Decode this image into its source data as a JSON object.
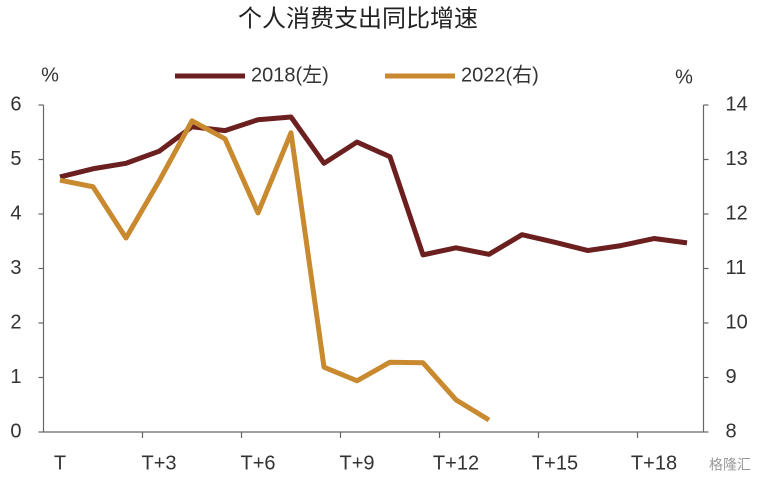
{
  "chart_data": {
    "type": "line",
    "title": "个人消费支出同比增速",
    "y_label": "%",
    "y2_label": "%",
    "categories": [
      "T",
      null,
      null,
      "T+3",
      null,
      null,
      "T+6",
      null,
      null,
      "T+9",
      null,
      null,
      "T+12",
      null,
      null,
      "T+15",
      null,
      null,
      "T+18",
      null
    ],
    "series": [
      {
        "name": "2018(左)",
        "color": "#6b1f1f",
        "values": [
          4.68,
          4.83,
          4.93,
          5.15,
          5.6,
          5.53,
          5.73,
          5.78,
          4.93,
          5.32,
          5.05,
          3.25,
          3.38,
          3.26,
          3.62,
          3.48,
          3.33,
          3.42,
          3.55,
          3.47
        ]
      },
      {
        "name": "2022(右)",
        "color": "#c8892f",
        "axis": "y2",
        "values": [
          12.62,
          12.5,
          11.56,
          12.6,
          13.71,
          13.38,
          12.02,
          13.49,
          9.19,
          8.94,
          9.28,
          9.27,
          8.59,
          8.22,
          null,
          null,
          null,
          null,
          null,
          null
        ]
      }
    ],
    "ylim": [
      0,
      6
    ],
    "yticks": [
      0,
      1,
      2,
      3,
      4,
      5,
      6
    ],
    "y2lim": [
      8,
      14
    ],
    "y2ticks": [
      8,
      9,
      10,
      11,
      12,
      13,
      14
    ],
    "legend": "top",
    "watermark": "格隆汇"
  }
}
